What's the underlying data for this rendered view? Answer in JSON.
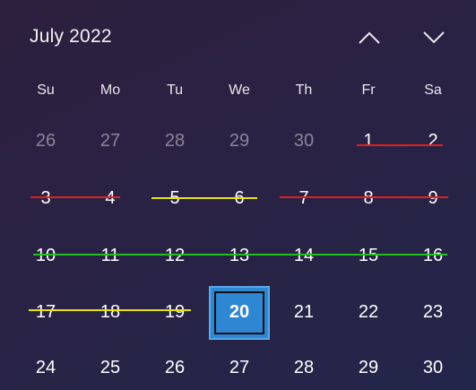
{
  "calendar": {
    "month_label": "July 2022",
    "prev_icon": "chevron-up-icon",
    "next_icon": "chevron-down-icon",
    "weekdays": [
      "Su",
      "Mo",
      "Tu",
      "We",
      "Th",
      "Fr",
      "Sa"
    ],
    "weeks": [
      [
        "26",
        "27",
        "28",
        "29",
        "30",
        "1",
        "2"
      ],
      [
        "3",
        "4",
        "5",
        "6",
        "7",
        "8",
        "9"
      ],
      [
        "10",
        "11",
        "12",
        "13",
        "14",
        "15",
        "16"
      ],
      [
        "17",
        "18",
        "19",
        "20",
        "21",
        "22",
        "23"
      ],
      [
        "24",
        "25",
        "26",
        "27",
        "28",
        "29",
        "30"
      ]
    ],
    "today": "20",
    "colors": {
      "strike_red": "#e0201e",
      "strike_yellow": "#e6e21a",
      "strike_green": "#21c21a",
      "today_fill": "#2f86d2"
    }
  }
}
